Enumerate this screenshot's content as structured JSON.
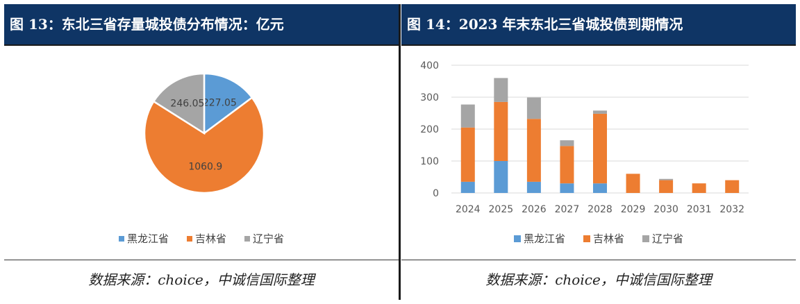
{
  "colors": {
    "heilongjiang": "#5b9bd5",
    "jilin": "#ed7d31",
    "liaoning": "#a5a5a5",
    "header_bg": "#0f3565"
  },
  "left": {
    "title": "图 13：东北三省存量城投债分布情况：亿元",
    "source": "数据来源：choice，中诚信国际整理"
  },
  "right": {
    "title": "图 14：2023 年末东北三省城投债到期情况",
    "source": "数据来源：choice，中诚信国际整理"
  },
  "chart_data": [
    {
      "type": "pie",
      "title": "",
      "slices": [
        {
          "label": "黑龙江省",
          "value": 227.05,
          "display": "227.05"
        },
        {
          "label": "吉林省",
          "value": 1060.9,
          "display": "1060.9"
        },
        {
          "label": "辽宁省",
          "value": 246.05,
          "display": "246.05"
        }
      ],
      "legend_position": "bottom"
    },
    {
      "type": "bar",
      "stacked": true,
      "title": "",
      "categories": [
        "2024",
        "2025",
        "2026",
        "2027",
        "2028",
        "2029",
        "2030",
        "2031",
        "2032"
      ],
      "series": [
        {
          "name": "黑龙江省",
          "values": [
            35,
            100,
            35,
            30,
            30,
            0,
            0,
            0,
            0
          ]
        },
        {
          "name": "吉林省",
          "values": [
            170,
            185,
            197,
            117,
            218,
            60,
            40,
            30,
            40
          ]
        },
        {
          "name": "辽宁省",
          "values": [
            72,
            75,
            67,
            18,
            10,
            0,
            4,
            0,
            0
          ]
        }
      ],
      "yticks": [
        0,
        100,
        200,
        300,
        400
      ],
      "ylim": [
        0,
        400
      ],
      "grid": true,
      "legend_position": "bottom"
    }
  ]
}
